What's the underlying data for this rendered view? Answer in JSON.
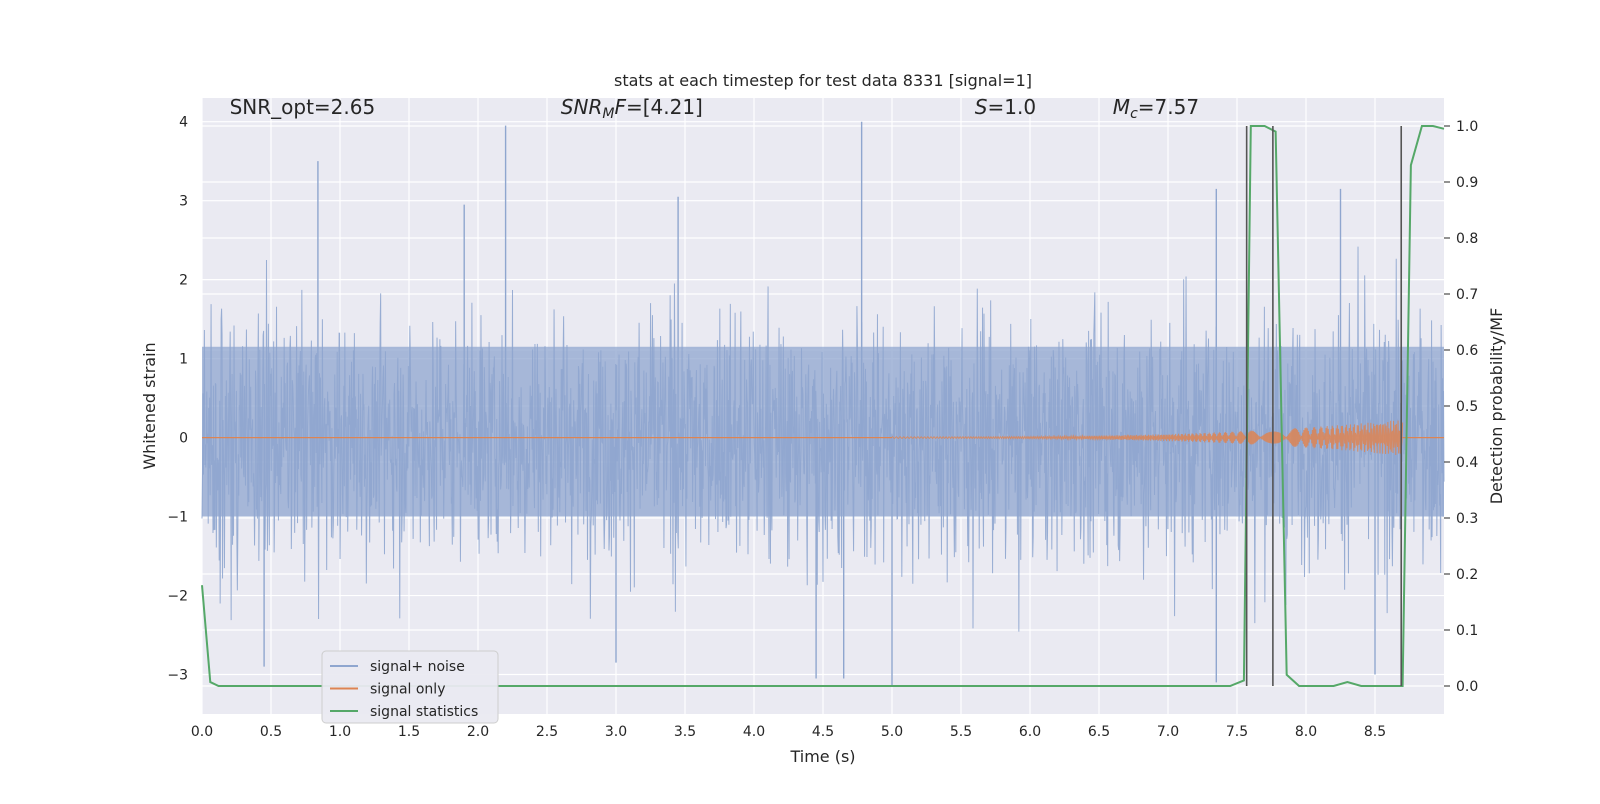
{
  "chart_data": {
    "type": "line",
    "title": "stats at each timestep for test data 8331 [signal=1]",
    "xlabel": "Time (s)",
    "ylabel": "Whitened strain",
    "y2label": "Detection probability/MF",
    "xlim": [
      0,
      9
    ],
    "ylim": [
      -3.5,
      4.3
    ],
    "y2lim": [
      -0.05,
      1.05
    ],
    "grid": true,
    "legend_position": "lower-left",
    "xticks": [
      0.0,
      0.5,
      1.0,
      1.5,
      2.0,
      2.5,
      3.0,
      3.5,
      4.0,
      4.5,
      5.0,
      5.5,
      6.0,
      6.5,
      7.0,
      7.5,
      8.0,
      8.5
    ],
    "xtick_labels": [
      "0.0",
      "0.5",
      "1.0",
      "1.5",
      "2.0",
      "2.5",
      "3.0",
      "3.5",
      "4.0",
      "4.5",
      "5.0",
      "5.5",
      "6.0",
      "6.5",
      "7.0",
      "7.5",
      "8.0",
      "8.5"
    ],
    "yticks": [
      -3,
      -2,
      -1,
      0,
      1,
      2,
      3,
      4
    ],
    "ytick_labels": [
      "−3",
      "−2",
      "−1",
      "0",
      "1",
      "2",
      "3",
      "4"
    ],
    "y2ticks": [
      0.0,
      0.1,
      0.2,
      0.3,
      0.4,
      0.5,
      0.6,
      0.7,
      0.8,
      0.9,
      1.0
    ],
    "y2tick_labels": [
      "0.0",
      "0.1",
      "0.2",
      "0.3",
      "0.4",
      "0.5",
      "0.6",
      "0.7",
      "0.8",
      "0.9",
      "1.0"
    ],
    "annotations": [
      {
        "text": "SNR_opt=2.65",
        "x": 0.2,
        "y": 4.1
      },
      {
        "text": "SNR_MF=[4.21]",
        "x": 2.6,
        "y": 4.1
      },
      {
        "text": "S=1.0",
        "x": 5.6,
        "y": 4.1
      },
      {
        "text": "M_c=7.57",
        "x": 6.6,
        "y": 4.1
      }
    ],
    "legend": [
      "signal+ noise",
      "signal only",
      "signal statistics"
    ],
    "series": [
      {
        "name": "signal+ noise",
        "color": "#8fa6cf",
        "kind": "noise",
        "duration_s": 9.0,
        "typical_envelope": [
          -1.7,
          1.8
        ],
        "peaks": [
          {
            "x": 0.84,
            "y": 3.5
          },
          {
            "x": 2.2,
            "y": 3.95
          },
          {
            "x": 4.78,
            "y": 4.0
          },
          {
            "x": 1.9,
            "y": 2.95
          },
          {
            "x": 3.45,
            "y": 3.05
          },
          {
            "x": 7.35,
            "y": 3.15
          },
          {
            "x": 8.25,
            "y": 3.15
          },
          {
            "x": 0.45,
            "y": -2.9
          },
          {
            "x": 3.0,
            "y": -2.85
          },
          {
            "x": 4.45,
            "y": -3.05
          },
          {
            "x": 4.65,
            "y": -3.05
          },
          {
            "x": 5.0,
            "y": -3.15
          },
          {
            "x": 7.35,
            "y": -3.1
          },
          {
            "x": 8.5,
            "y": -3.0
          }
        ]
      },
      {
        "name": "signal only",
        "color": "#dd8452",
        "kind": "chirp",
        "start_s": 5.0,
        "end_s": 8.7,
        "peak_amplitude": 0.22
      },
      {
        "name": "signal statistics",
        "color": "#55a868",
        "axis": "right",
        "x": [
          0.0,
          0.06,
          0.12,
          0.2,
          1.0,
          2.0,
          3.0,
          4.0,
          5.0,
          6.0,
          7.0,
          7.45,
          7.55,
          7.6,
          7.7,
          7.78,
          7.86,
          7.95,
          8.0,
          8.2,
          8.3,
          8.4,
          8.6,
          8.7,
          8.76,
          8.84,
          8.92,
          9.0
        ],
        "values": [
          0.18,
          0.007,
          0.0,
          0.0,
          0.0,
          0.0,
          0.0,
          0.0,
          0.0,
          0.0,
          0.0,
          0.0,
          0.01,
          1.0,
          1.0,
          0.99,
          0.02,
          0.0,
          0.0,
          0.0,
          0.007,
          0.0,
          0.0,
          0.0,
          0.93,
          1.0,
          1.0,
          0.995
        ]
      }
    ],
    "vlines": {
      "color": "#555555",
      "x": [
        7.57,
        7.76,
        8.69
      ]
    }
  }
}
